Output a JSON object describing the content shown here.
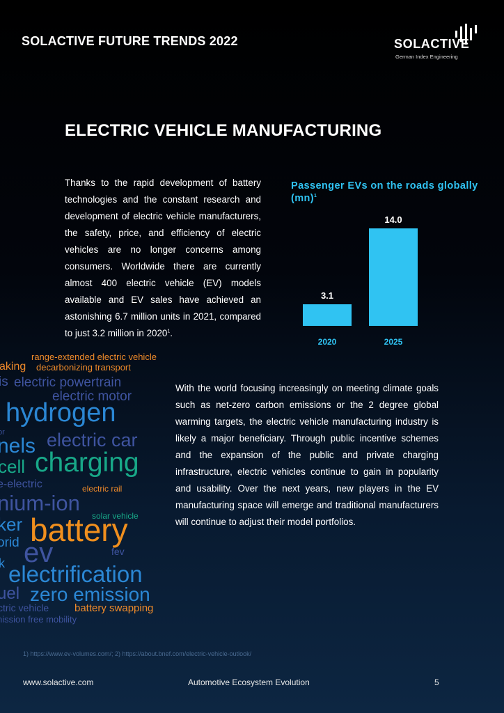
{
  "header": {
    "title": "SOLACTIVE FUTURE TRENDS 2022",
    "logo_text": "SOLACTIVE",
    "logo_subtitle": "German Index Engineering"
  },
  "page_title": "ELECTRIC VEHICLE MANUFACTURING",
  "para1": {
    "text": "Thanks to the rapid development of battery technologies and the constant research and development of electric vehicle manufacturers, the safety, price, and efficiency of electric vehicles are no longer concerns among consumers. Worldwide there are currently almost 400 electric vehicle (EV) models available and EV sales have achieved an astonishing 6.7 million units in 2021, compared to just 3.2 million in 2020",
    "sup": "1",
    "end": "."
  },
  "para2": "With the world focusing increasingly on meeting climate goals such as net-zero carbon emissions or the 2 degree global warming targets, the electric vehicle manufacturing industry is likely a major beneficiary. Through public incentive schemes and the expansion of the public and private charging infrastructure, electric vehicles continue to gain in popularity and usability. Over the next years, new players in the EV manufacturing space will emerge and traditional manufacturers will continue to adjust their model portfolios.",
  "chart_data": {
    "type": "bar",
    "title": "Passenger EVs on the roads globally (mn)",
    "title_sup": "1",
    "categories": [
      "2020",
      "2025"
    ],
    "values": [
      3.1,
      14.0
    ],
    "value_labels": [
      "3.1",
      "14.0"
    ],
    "ylim": [
      0,
      14
    ],
    "grid": false,
    "bar_color": "#30c3f2"
  },
  "word_cloud": [
    {
      "text": "range-extended electric vehicle",
      "color": "#ee8a2a"
    },
    {
      "text": "aking",
      "color": "#ee8a2a"
    },
    {
      "text": "decarbonizing transport",
      "color": "#ee8a2a"
    },
    {
      "text": "is",
      "color": "#3f54a0"
    },
    {
      "text": "electric powertrain",
      "color": "#3f54a0"
    },
    {
      "text": "electric motor",
      "color": "#3f54a0"
    },
    {
      "text": "hydrogen",
      "color": "#2b87d4"
    },
    {
      "text": "or",
      "color": "#3f54a0"
    },
    {
      "text": "nels",
      "color": "#2b87d4"
    },
    {
      "text": "electric car",
      "color": "#3f54a0"
    },
    {
      "text": "cell",
      "color": "#18a888"
    },
    {
      "text": "charging",
      "color": "#18a888"
    },
    {
      "text": "e-electric",
      "color": "#3f54a0"
    },
    {
      "text": "electric rail",
      "color": "#ee8a2a"
    },
    {
      "text": "nium-ion",
      "color": "#3f54a0"
    },
    {
      "text": "solar vehicle",
      "color": "#18a888"
    },
    {
      "text": "ker",
      "color": "#2b87d4"
    },
    {
      "text": "battery",
      "color": "#f08f1e"
    },
    {
      "text": "orid",
      "color": "#2b87d4"
    },
    {
      "text": "ev",
      "color": "#3f54a0"
    },
    {
      "text": "fev",
      "color": "#3f54a0"
    },
    {
      "text": "k",
      "color": "#2b87d4"
    },
    {
      "text": "electrification",
      "color": "#2b87d4"
    },
    {
      "text": "uel",
      "color": "#3f54a0"
    },
    {
      "text": "zero emission",
      "color": "#2b87d4"
    },
    {
      "text": "ctric vehicle",
      "color": "#3f54a0"
    },
    {
      "text": "battery swapping",
      "color": "#ee8a2a"
    },
    {
      "text": "nission free mobility",
      "color": "#3f54a0"
    }
  ],
  "footnote": "1) https://www.ev-volumes.com/; 2) https://about.bnef.com/electric-vehicle-outlook/",
  "footer": {
    "site": "www.solactive.com",
    "center": "Automotive Ecosystem Evolution",
    "page": "5"
  }
}
